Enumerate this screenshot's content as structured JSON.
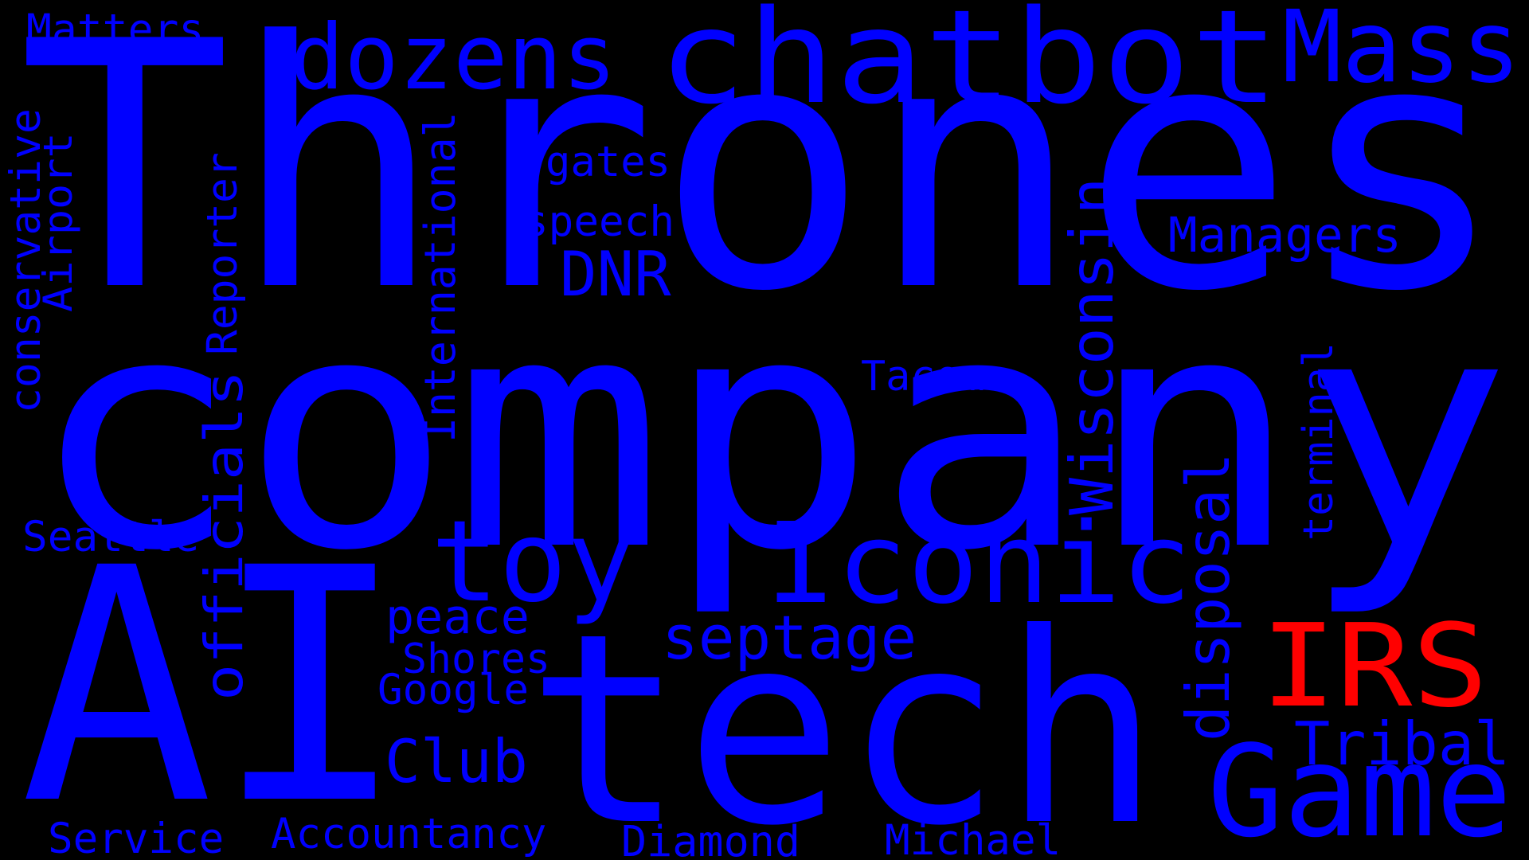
{
  "colors": {
    "background": "#000000",
    "primary": "#0000ff",
    "highlight": "#ff0000"
  },
  "words": [
    {
      "id": "thrones",
      "text": "Thrones"
    },
    {
      "id": "company",
      "text": "company"
    },
    {
      "id": "ai",
      "text": "AI"
    },
    {
      "id": "tech",
      "text": "tech"
    },
    {
      "id": "dozens",
      "text": "dozens"
    },
    {
      "id": "chatbot",
      "text": "chatbot"
    },
    {
      "id": "mass",
      "text": "Mass"
    },
    {
      "id": "matters",
      "text": "Matters"
    },
    {
      "id": "toy",
      "text": "toy"
    },
    {
      "id": "iconic",
      "text": "Iconic"
    },
    {
      "id": "irs",
      "text": "IRS",
      "color": "#ff0000"
    },
    {
      "id": "game",
      "text": "Game"
    },
    {
      "id": "tribal",
      "text": "Tribal"
    },
    {
      "id": "septage",
      "text": "septage"
    },
    {
      "id": "club",
      "text": "Club"
    },
    {
      "id": "dnr",
      "text": "DNR"
    },
    {
      "id": "managers",
      "text": "Managers"
    },
    {
      "id": "speech",
      "text": "speech"
    },
    {
      "id": "gates",
      "text": "gates"
    },
    {
      "id": "tacoma",
      "text": "Tacoma"
    },
    {
      "id": "peace",
      "text": "peace"
    },
    {
      "id": "shores",
      "text": "Shores"
    },
    {
      "id": "google",
      "text": "Google"
    },
    {
      "id": "seattle",
      "text": "Seattle"
    },
    {
      "id": "service",
      "text": "Service"
    },
    {
      "id": "accountancy",
      "text": "Accountancy"
    },
    {
      "id": "diamond",
      "text": "Diamond"
    },
    {
      "id": "michael",
      "text": "Michael"
    },
    {
      "id": "conservative",
      "text": "conservative"
    },
    {
      "id": "airport",
      "text": "Airport"
    },
    {
      "id": "reporter",
      "text": "Reporter"
    },
    {
      "id": "officials",
      "text": "officials"
    },
    {
      "id": "international",
      "text": "International"
    },
    {
      "id": "wisconsin",
      "text": "Wisconsin"
    },
    {
      "id": "disposal",
      "text": "disposal"
    },
    {
      "id": "terminal",
      "text": "terminal"
    }
  ]
}
